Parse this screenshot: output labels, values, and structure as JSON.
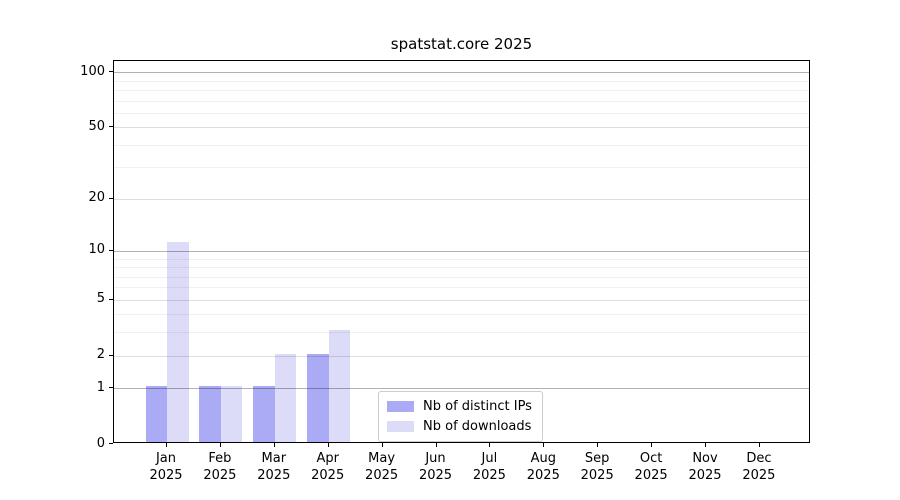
{
  "title": "spatstat.core 2025",
  "chart_data": {
    "type": "bar",
    "title": "spatstat.core 2025",
    "categories": [
      "Jan",
      "Feb",
      "Mar",
      "Apr",
      "May",
      "Jun",
      "Jul",
      "Aug",
      "Sep",
      "Oct",
      "Nov",
      "Dec"
    ],
    "year_label": "2025",
    "series": [
      {
        "name": "Nb of distinct IPs",
        "color": "#aaaaf5",
        "values": [
          1,
          1,
          1,
          2,
          0,
          0,
          0,
          0,
          0,
          0,
          0,
          0
        ]
      },
      {
        "name": "Nb of downloads",
        "color": "#dcdcf8",
        "values": [
          11,
          1,
          2,
          3,
          0,
          0,
          0,
          0,
          0,
          0,
          0,
          0
        ]
      }
    ],
    "yscale": "log1p",
    "ylim": [
      0,
      115
    ],
    "ytick_values": [
      0,
      1,
      2,
      5,
      10,
      20,
      50,
      100
    ],
    "ytick_labels": [
      "0",
      "1",
      "2",
      "5",
      "10",
      "20",
      "50",
      "100"
    ],
    "major_grid_values": [
      1,
      10,
      100
    ],
    "labeled_grid_values": [
      2,
      5,
      20,
      50
    ],
    "minor_grid_values": [
      3,
      4,
      6,
      7,
      8,
      9,
      30,
      40,
      60,
      70,
      80,
      90
    ],
    "grid": "horizontal",
    "legend_position": "inside-bottom-center",
    "xlabel": "",
    "ylabel": ""
  },
  "legend": {
    "items": [
      {
        "label": "Nb of distinct IPs",
        "color": "#aaaaf5"
      },
      {
        "label": "Nb of downloads",
        "color": "#dcdcf8"
      }
    ]
  },
  "colors": {
    "background": "#ffffff",
    "spine": "#000000",
    "major_grid": "rgba(0,0,0,0.30)",
    "labeled_grid": "rgba(0,0,0,0.13)",
    "minor_grid": "rgba(0,0,0,0.055)",
    "bar_distinct_ips": "#aaaaf5",
    "bar_downloads": "#dcdcf8"
  }
}
